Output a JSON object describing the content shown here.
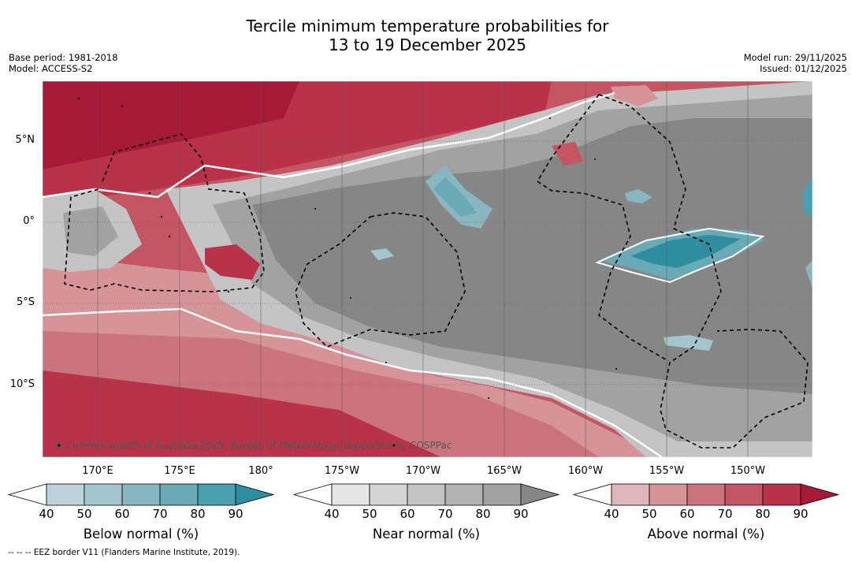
{
  "title": {
    "line1": "Tercile minimum temperature probabilities for",
    "line2": "13 to 19 December 2025"
  },
  "meta_left": {
    "base_period": "Base period: 1981-2018",
    "model": "Model: ACCESS-S2"
  },
  "meta_right": {
    "model_run": "Model run: 29/11/2025",
    "issued": "Issued: 01/12/2025"
  },
  "map": {
    "lat_labels": [
      "5°N",
      "0°",
      "5°S",
      "10°S"
    ],
    "lon_labels": [
      "170°E",
      "175°E",
      "180°",
      "175°W",
      "170°W",
      "165°W",
      "160°W",
      "155°W",
      "150°W"
    ],
    "copyright": "© Commonwealth of Australia 2025, Bureau of Meteorology, supported by COSPPac"
  },
  "colorbars": [
    {
      "id": "below",
      "title": "Below normal (%)",
      "ticks": [
        "40",
        "50",
        "60",
        "70",
        "80",
        "90"
      ],
      "colors": [
        "#bcd3db",
        "#a3c5cd",
        "#88b7c1",
        "#6aaab6",
        "#48a0af",
        "#2e8ea0"
      ]
    },
    {
      "id": "near",
      "title": "Near normal (%)",
      "ticks": [
        "40",
        "50",
        "60",
        "70",
        "80",
        "90"
      ],
      "colors": [
        "#e6e6e6",
        "#d5d5d5",
        "#c4c4c4",
        "#b2b2b2",
        "#a2a2a2",
        "#868686"
      ]
    },
    {
      "id": "above",
      "title": "Above normal (%)",
      "ticks": [
        "40",
        "50",
        "60",
        "70",
        "80",
        "90"
      ],
      "colors": [
        "#deb6bb",
        "#d69499",
        "#cc747d",
        "#c45563",
        "#b8334a",
        "#a61a38"
      ]
    }
  ],
  "footer": "-- -- -- EEZ border V11 (Flanders Marine Institute, 2019)."
}
